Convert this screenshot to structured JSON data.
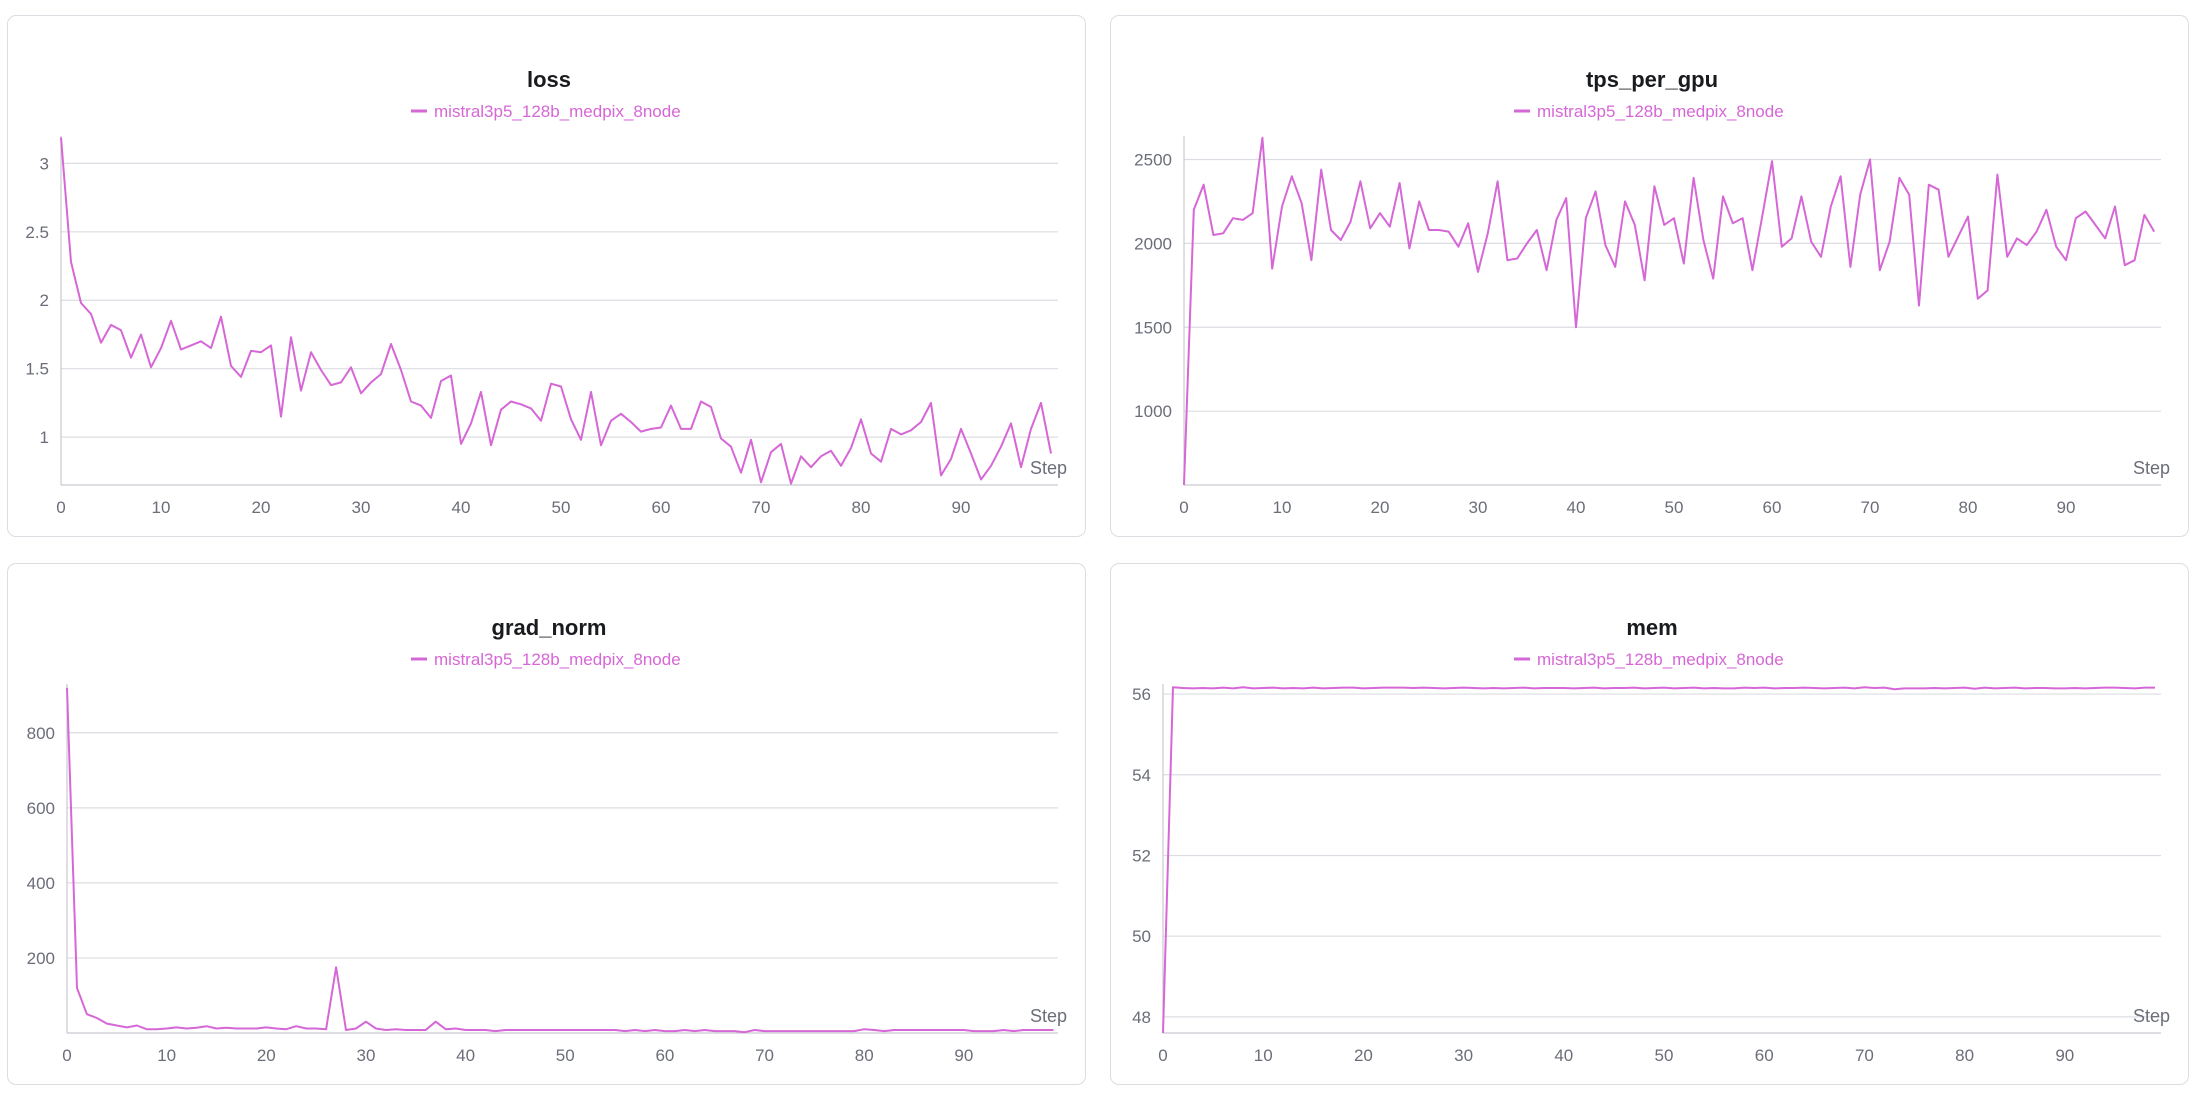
{
  "charts": [
    {
      "title": "loss",
      "legend": "mistral3p5_128b_medpix_8node",
      "step_label": "Step",
      "x_ticks": [
        "0",
        "10",
        "20",
        "30",
        "40",
        "50",
        "60",
        "70",
        "80",
        "90"
      ],
      "y_ticks": [
        "1",
        "1.5",
        "2",
        "2.5",
        "3"
      ]
    },
    {
      "title": "tps_per_gpu",
      "legend": "mistral3p5_128b_medpix_8node",
      "step_label": "Step",
      "x_ticks": [
        "0",
        "10",
        "20",
        "30",
        "40",
        "50",
        "60",
        "70",
        "80",
        "90"
      ],
      "y_ticks": [
        "1000",
        "1500",
        "2000",
        "2500"
      ]
    },
    {
      "title": "grad_norm",
      "legend": "mistral3p5_128b_medpix_8node",
      "step_label": "Step",
      "x_ticks": [
        "0",
        "10",
        "20",
        "30",
        "40",
        "50",
        "60",
        "70",
        "80",
        "90"
      ],
      "y_ticks": [
        "200",
        "400",
        "600",
        "800"
      ]
    },
    {
      "title": "mem",
      "legend": "mistral3p5_128b_medpix_8node",
      "step_label": "Step",
      "x_ticks": [
        "0",
        "10",
        "20",
        "30",
        "40",
        "50",
        "60",
        "70",
        "80",
        "90"
      ],
      "y_ticks": [
        "48",
        "50",
        "52",
        "54",
        "56"
      ]
    }
  ],
  "chart_data": [
    {
      "type": "line",
      "title": "loss",
      "xlabel": "Step",
      "ylabel": "",
      "xlim": [
        0,
        99
      ],
      "ylim": [
        0.65,
        3.2
      ],
      "y_ticks": [
        1,
        1.5,
        2,
        2.5,
        3
      ],
      "x_ticks": [
        0,
        10,
        20,
        30,
        40,
        50,
        60,
        70,
        80,
        90
      ],
      "grid": true,
      "legend_position": "top-center",
      "color": "#d667d6",
      "series": [
        {
          "name": "mistral3p5_128b_medpix_8node",
          "x": [
            0,
            1,
            2,
            3,
            4,
            5,
            6,
            7,
            8,
            9,
            10,
            11,
            12,
            13,
            14,
            15,
            16,
            17,
            18,
            19,
            20,
            21,
            22,
            23,
            24,
            25,
            26,
            27,
            28,
            29,
            30,
            31,
            32,
            33,
            34,
            35,
            36,
            37,
            38,
            39,
            40,
            41,
            42,
            43,
            44,
            45,
            46,
            47,
            48,
            49,
            50,
            51,
            52,
            53,
            54,
            55,
            56,
            57,
            58,
            59,
            60,
            61,
            62,
            63,
            64,
            65,
            66,
            67,
            68,
            69,
            70,
            71,
            72,
            73,
            74,
            75,
            76,
            77,
            78,
            79,
            80,
            81,
            82,
            83,
            84,
            85,
            86,
            87,
            88,
            89,
            90,
            91,
            92,
            93,
            94,
            95,
            96,
            97,
            98,
            99
          ],
          "y": [
            3.19,
            2.28,
            1.98,
            1.9,
            1.69,
            1.82,
            1.78,
            1.58,
            1.75,
            1.51,
            1.65,
            1.85,
            1.64,
            1.67,
            1.7,
            1.65,
            1.88,
            1.52,
            1.44,
            1.63,
            1.62,
            1.67,
            1.15,
            1.73,
            1.34,
            1.62,
            1.49,
            1.38,
            1.4,
            1.51,
            1.32,
            1.4,
            1.46,
            1.68,
            1.49,
            1.26,
            1.23,
            1.14,
            1.41,
            1.45,
            0.95,
            1.1,
            1.33,
            0.94,
            1.2,
            1.26,
            1.24,
            1.21,
            1.12,
            1.39,
            1.37,
            1.13,
            0.98,
            1.33,
            0.94,
            1.12,
            1.17,
            1.11,
            1.04,
            1.06,
            1.07,
            1.23,
            1.06,
            1.06,
            1.26,
            1.22,
            0.99,
            0.93,
            0.74,
            0.98,
            0.67,
            0.89,
            0.95,
            0.66,
            0.86,
            0.78,
            0.86,
            0.9,
            0.79,
            0.92,
            1.13,
            0.88,
            0.82,
            1.06,
            1.02,
            1.05,
            1.11,
            1.25,
            0.72,
            0.84,
            1.06,
            0.88,
            0.69,
            0.79,
            0.93,
            1.1,
            0.78,
            1.06,
            1.25,
            0.88
          ]
        }
      ]
    },
    {
      "type": "line",
      "title": "tps_per_gpu",
      "xlabel": "Step",
      "ylabel": "",
      "xlim": [
        0,
        99
      ],
      "ylim": [
        560,
        2640
      ],
      "y_ticks": [
        1000,
        1500,
        2000,
        2500
      ],
      "x_ticks": [
        0,
        10,
        20,
        30,
        40,
        50,
        60,
        70,
        80,
        90
      ],
      "grid": true,
      "legend_position": "top-center",
      "color": "#d667d6",
      "series": [
        {
          "name": "mistral3p5_128b_medpix_8node",
          "x": [
            0,
            1,
            2,
            3,
            4,
            5,
            6,
            7,
            8,
            9,
            10,
            11,
            12,
            13,
            14,
            15,
            16,
            17,
            18,
            19,
            20,
            21,
            22,
            23,
            24,
            25,
            26,
            27,
            28,
            29,
            30,
            31,
            32,
            33,
            34,
            35,
            36,
            37,
            38,
            39,
            40,
            41,
            42,
            43,
            44,
            45,
            46,
            47,
            48,
            49,
            50,
            51,
            52,
            53,
            54,
            55,
            56,
            57,
            58,
            59,
            60,
            61,
            62,
            63,
            64,
            65,
            66,
            67,
            68,
            69,
            70,
            71,
            72,
            73,
            74,
            75,
            76,
            77,
            78,
            79,
            80,
            81,
            82,
            83,
            84,
            85,
            86,
            87,
            88,
            89,
            90,
            91,
            92,
            93,
            94,
            95,
            96,
            97,
            98,
            99
          ],
          "y": [
            560,
            2200,
            2350,
            2050,
            2060,
            2150,
            2140,
            2180,
            2630,
            1850,
            2220,
            2400,
            2240,
            1900,
            2440,
            2080,
            2020,
            2130,
            2370,
            2090,
            2180,
            2100,
            2360,
            1970,
            2250,
            2080,
            2080,
            2070,
            1980,
            2120,
            1830,
            2060,
            2370,
            1900,
            1910,
            2000,
            2080,
            1840,
            2140,
            2270,
            1500,
            2150,
            2310,
            1990,
            1860,
            2250,
            2110,
            1780,
            2340,
            2110,
            2150,
            1880,
            2390,
            2020,
            1790,
            2280,
            2120,
            2150,
            1840,
            2160,
            2490,
            1980,
            2030,
            2280,
            2010,
            1920,
            2220,
            2400,
            1860,
            2290,
            2500,
            1840,
            2010,
            2390,
            2290,
            1630,
            2350,
            2320,
            1920,
            2040,
            2160,
            1670,
            1720,
            2410,
            1920,
            2030,
            1990,
            2070,
            2200,
            1980,
            1900,
            2150,
            2190,
            2110,
            2030,
            2220,
            1870,
            1900,
            2170,
            2070
          ]
        }
      ]
    },
    {
      "type": "line",
      "title": "grad_norm",
      "xlabel": "Step",
      "ylabel": "",
      "xlim": [
        0,
        99
      ],
      "ylim": [
        0,
        930
      ],
      "y_ticks": [
        200,
        400,
        600,
        800
      ],
      "x_ticks": [
        0,
        10,
        20,
        30,
        40,
        50,
        60,
        70,
        80,
        90
      ],
      "grid": true,
      "legend_position": "top-center",
      "color": "#d667d6",
      "series": [
        {
          "name": "mistral3p5_128b_medpix_8node",
          "x": [
            0,
            1,
            2,
            3,
            4,
            5,
            6,
            7,
            8,
            9,
            10,
            11,
            12,
            13,
            14,
            15,
            16,
            17,
            18,
            19,
            20,
            21,
            22,
            23,
            24,
            25,
            26,
            27,
            28,
            29,
            30,
            31,
            32,
            33,
            34,
            35,
            36,
            37,
            38,
            39,
            40,
            41,
            42,
            43,
            44,
            45,
            46,
            47,
            48,
            49,
            50,
            51,
            52,
            53,
            54,
            55,
            56,
            57,
            58,
            59,
            60,
            61,
            62,
            63,
            64,
            65,
            66,
            67,
            68,
            69,
            70,
            71,
            72,
            73,
            74,
            75,
            76,
            77,
            78,
            79,
            80,
            81,
            82,
            83,
            84,
            85,
            86,
            87,
            88,
            89,
            90,
            91,
            92,
            93,
            94,
            95,
            96,
            97,
            98,
            99
          ],
          "y": [
            920,
            120,
            50,
            40,
            25,
            20,
            15,
            20,
            10,
            10,
            12,
            15,
            12,
            14,
            18,
            12,
            14,
            12,
            12,
            12,
            15,
            12,
            10,
            18,
            12,
            12,
            10,
            175,
            8,
            12,
            30,
            12,
            8,
            10,
            8,
            8,
            8,
            30,
            10,
            12,
            8,
            8,
            8,
            5,
            8,
            8,
            8,
            8,
            8,
            8,
            8,
            8,
            8,
            8,
            8,
            8,
            5,
            8,
            5,
            8,
            5,
            5,
            8,
            5,
            8,
            5,
            5,
            5,
            2,
            8,
            5,
            5,
            5,
            5,
            5,
            5,
            5,
            5,
            5,
            5,
            10,
            8,
            5,
            8,
            8,
            8,
            8,
            8,
            8,
            8,
            8,
            5,
            5,
            5,
            8,
            5,
            8,
            8,
            8,
            8
          ]
        }
      ]
    },
    {
      "type": "line",
      "title": "mem",
      "xlabel": "Step",
      "ylabel": "",
      "xlim": [
        0,
        99
      ],
      "ylim": [
        47.6,
        56.25
      ],
      "y_ticks": [
        48,
        50,
        52,
        54,
        56
      ],
      "x_ticks": [
        0,
        10,
        20,
        30,
        40,
        50,
        60,
        70,
        80,
        90
      ],
      "grid": true,
      "legend_position": "top-center",
      "color": "#d667d6",
      "series": [
        {
          "name": "mistral3p5_128b_medpix_8node",
          "x": [
            0,
            1,
            2,
            3,
            4,
            5,
            6,
            7,
            8,
            9,
            10,
            11,
            12,
            13,
            14,
            15,
            16,
            17,
            18,
            19,
            20,
            21,
            22,
            23,
            24,
            25,
            26,
            27,
            28,
            29,
            30,
            31,
            32,
            33,
            34,
            35,
            36,
            37,
            38,
            39,
            40,
            41,
            42,
            43,
            44,
            45,
            46,
            47,
            48,
            49,
            50,
            51,
            52,
            53,
            54,
            55,
            56,
            57,
            58,
            59,
            60,
            61,
            62,
            63,
            64,
            65,
            66,
            67,
            68,
            69,
            70,
            71,
            72,
            73,
            74,
            75,
            76,
            77,
            78,
            79,
            80,
            81,
            82,
            83,
            84,
            85,
            86,
            87,
            88,
            89,
            90,
            91,
            92,
            93,
            94,
            95,
            96,
            97,
            98,
            99
          ],
          "y": [
            47.6,
            56.17,
            56.15,
            56.14,
            56.15,
            56.14,
            56.16,
            56.14,
            56.17,
            56.14,
            56.15,
            56.16,
            56.14,
            56.15,
            56.14,
            56.16,
            56.14,
            56.15,
            56.16,
            56.16,
            56.14,
            56.15,
            56.16,
            56.16,
            56.16,
            56.15,
            56.16,
            56.15,
            56.14,
            56.15,
            56.16,
            56.15,
            56.14,
            56.15,
            56.14,
            56.15,
            56.16,
            56.14,
            56.15,
            56.15,
            56.15,
            56.14,
            56.15,
            56.16,
            56.14,
            56.15,
            56.15,
            56.16,
            56.14,
            56.15,
            56.16,
            56.14,
            56.15,
            56.16,
            56.14,
            56.15,
            56.14,
            56.14,
            56.16,
            56.15,
            56.16,
            56.14,
            56.15,
            56.15,
            56.16,
            56.15,
            56.14,
            56.15,
            56.16,
            56.14,
            56.17,
            56.15,
            56.16,
            56.12,
            56.14,
            56.14,
            56.14,
            56.15,
            56.14,
            56.15,
            56.16,
            56.13,
            56.16,
            56.14,
            56.15,
            56.16,
            56.14,
            56.15,
            56.15,
            56.14,
            56.14,
            56.15,
            56.14,
            56.15,
            56.16,
            56.16,
            56.15,
            56.14,
            56.16,
            56.16
          ]
        }
      ]
    }
  ]
}
